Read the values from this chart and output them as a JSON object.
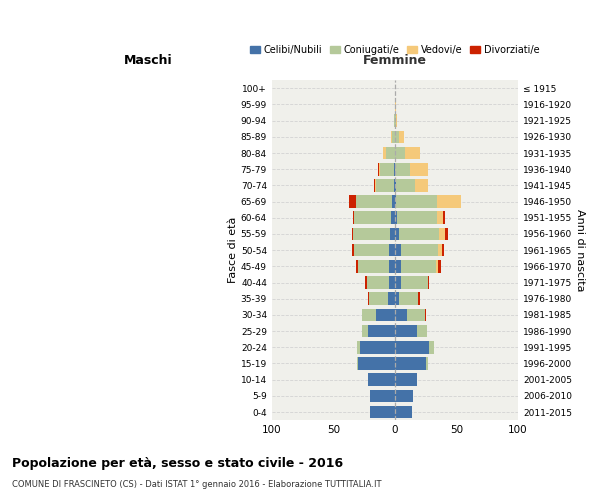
{
  "age_groups": [
    "0-4",
    "5-9",
    "10-14",
    "15-19",
    "20-24",
    "25-29",
    "30-34",
    "35-39",
    "40-44",
    "45-49",
    "50-54",
    "55-59",
    "60-64",
    "65-69",
    "70-74",
    "75-79",
    "80-84",
    "85-89",
    "90-94",
    "95-99",
    "100+"
  ],
  "birth_years": [
    "2011-2015",
    "2006-2010",
    "2001-2005",
    "1996-2000",
    "1991-1995",
    "1986-1990",
    "1981-1985",
    "1976-1980",
    "1971-1975",
    "1966-1970",
    "1961-1965",
    "1956-1960",
    "1951-1955",
    "1946-1950",
    "1941-1945",
    "1936-1940",
    "1931-1935",
    "1926-1930",
    "1921-1925",
    "1916-1920",
    "≤ 1915"
  ],
  "colors": {
    "celibi": "#4472a8",
    "coniugati": "#b5c99a",
    "vedovi": "#f5c97a",
    "divorziati": "#cc2200"
  },
  "maschi": {
    "celibi": [
      20,
      20,
      22,
      30,
      28,
      22,
      15,
      6,
      5,
      5,
      5,
      4,
      3,
      2,
      1,
      1,
      0,
      0,
      0,
      0,
      0
    ],
    "coniugati": [
      0,
      0,
      0,
      1,
      3,
      5,
      12,
      15,
      18,
      25,
      28,
      30,
      30,
      30,
      14,
      11,
      7,
      2,
      1,
      0,
      0
    ],
    "vedovi": [
      0,
      0,
      0,
      0,
      0,
      0,
      0,
      0,
      0,
      0,
      0,
      0,
      0,
      0,
      1,
      1,
      3,
      1,
      0,
      0,
      0
    ],
    "divorziati": [
      0,
      0,
      0,
      0,
      0,
      0,
      0,
      1,
      1,
      2,
      2,
      1,
      1,
      5,
      1,
      1,
      0,
      0,
      0,
      0,
      0
    ]
  },
  "femmine": {
    "nubili": [
      14,
      15,
      18,
      25,
      28,
      18,
      10,
      3,
      5,
      5,
      5,
      3,
      2,
      1,
      1,
      0,
      0,
      0,
      0,
      0,
      0
    ],
    "coniugate": [
      0,
      0,
      0,
      2,
      4,
      8,
      14,
      16,
      22,
      28,
      30,
      33,
      32,
      33,
      15,
      12,
      8,
      3,
      1,
      0,
      0
    ],
    "vedove": [
      0,
      0,
      0,
      0,
      0,
      0,
      0,
      0,
      0,
      2,
      3,
      5,
      5,
      20,
      11,
      15,
      12,
      4,
      1,
      1,
      0
    ],
    "divorziate": [
      0,
      0,
      0,
      0,
      0,
      0,
      1,
      1,
      1,
      2,
      2,
      2,
      2,
      0,
      0,
      0,
      0,
      0,
      0,
      0,
      0
    ]
  },
  "xlim": 100,
  "title": "Popolazione per età, sesso e stato civile - 2016",
  "subtitle": "COMUNE DI FRASCINETO (CS) - Dati ISTAT 1° gennaio 2016 - Elaborazione TUTTITALIA.IT",
  "xlabel_left": "Maschi",
  "xlabel_right": "Femmine",
  "ylabel_left": "Fasce di età",
  "ylabel_right": "Anni di nascita",
  "legend_labels": [
    "Celibi/Nubili",
    "Coniugati/e",
    "Vedovi/e",
    "Divorziati/e"
  ],
  "bg_color": "#f0f0eb",
  "fig_color": "#ffffff"
}
